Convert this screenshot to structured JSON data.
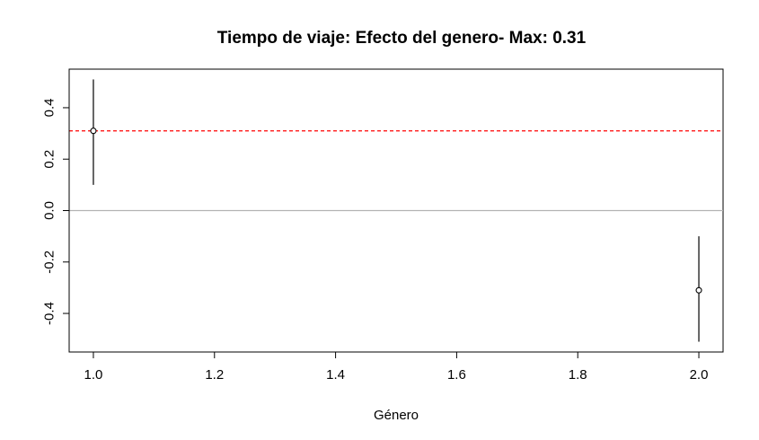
{
  "chart_data": {
    "type": "scatter",
    "title": "Tiempo de viaje: Efecto del genero- Max: 0.31",
    "xlabel": "Género",
    "ylabel": "",
    "xlim": [
      0.96,
      2.04
    ],
    "ylim": [
      -0.55,
      0.55
    ],
    "x_ticks": [
      1.0,
      1.2,
      1.4,
      1.6,
      1.8,
      2.0
    ],
    "x_tick_labels": [
      "1.0",
      "1.2",
      "1.4",
      "1.6",
      "1.8",
      "2.0"
    ],
    "y_ticks": [
      -0.4,
      -0.2,
      0.0,
      0.2,
      0.4
    ],
    "y_tick_labels": [
      "-0.4",
      "-0.2",
      "0.0",
      "0.2",
      "0.4"
    ],
    "points": [
      {
        "x": 1.0,
        "y": 0.31,
        "lower": 0.1,
        "upper": 0.51
      },
      {
        "x": 2.0,
        "y": -0.31,
        "lower": -0.51,
        "upper": -0.1
      }
    ],
    "reference_lines": [
      {
        "y": 0.0,
        "color": "#b3b3b3",
        "style": "solid"
      },
      {
        "y": 0.31,
        "color": "#ff0000",
        "style": "dashed"
      }
    ],
    "grid": false,
    "colors": {
      "points": "#000000",
      "errorbars": "#000000"
    }
  }
}
